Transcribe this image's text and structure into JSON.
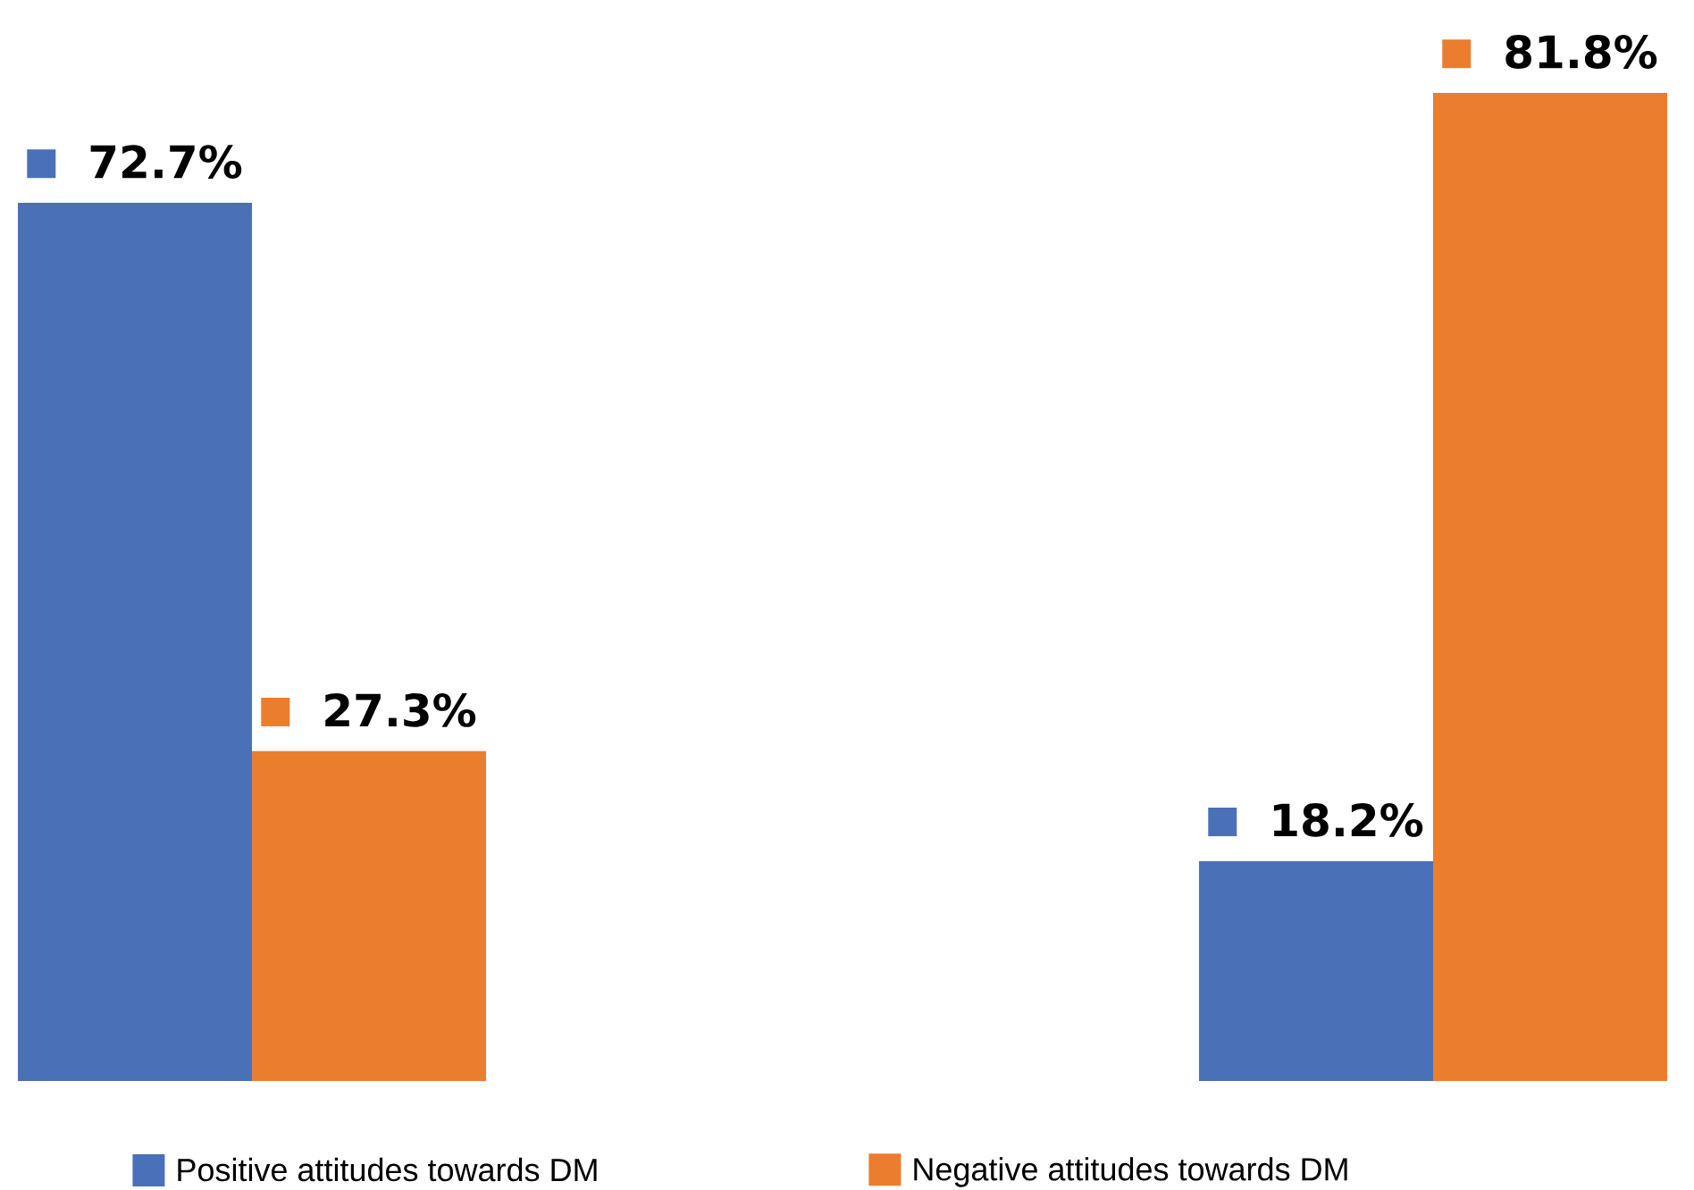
{
  "chart_data": {
    "type": "bar",
    "categories": [
      null,
      null
    ],
    "series": [
      {
        "name": "Positive attitudes towards DM",
        "color": "#4a70b8",
        "values": [
          72.7,
          18.2
        ],
        "value_labels": [
          "72.7%",
          "18.2%"
        ]
      },
      {
        "name": "Negative attitudes towards DM",
        "color": "#eb7d2f",
        "values": [
          27.3,
          81.8
        ],
        "value_labels": [
          "27.3%",
          "81.8%"
        ]
      }
    ],
    "legend": "bottom"
  }
}
